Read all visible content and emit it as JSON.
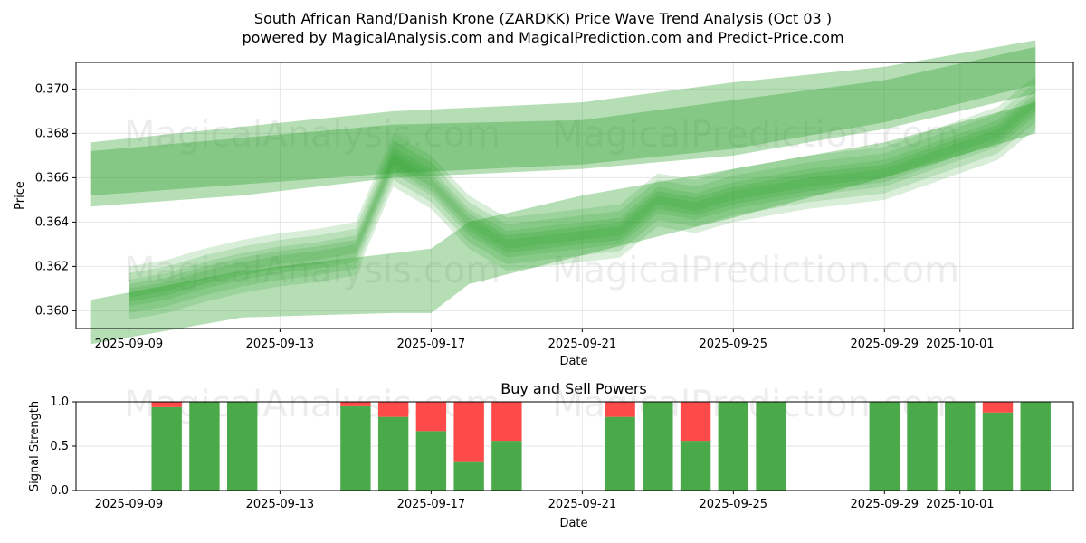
{
  "title": {
    "line1": "South African Rand/Danish Krone (ZARDKK) Price Wave Trend Analysis (Oct 03 )",
    "line2": "powered by MagicalAnalysis.com and MagicalPrediction.com and Predict-Price.com"
  },
  "watermarks": [
    "MagicalAnalysis.com",
    "MagicalPrediction.com"
  ],
  "chart_data": [
    {
      "type": "area",
      "title": "",
      "xlabel": "Date",
      "ylabel": "Price",
      "ylim": [
        0.3592,
        0.3712
      ],
      "xlim": [
        "2025-09-07.6",
        "2025-10-04.0"
      ],
      "grid": true,
      "x_tick_labels": [
        "2025-09-09",
        "2025-09-13",
        "2025-09-17",
        "2025-09-21",
        "2025-09-25",
        "2025-09-29",
        "2025-10-01"
      ],
      "y_tick_labels": [
        "0.360",
        "0.362",
        "0.364",
        "0.366",
        "0.368",
        "0.370"
      ],
      "series": [
        {
          "name": "upper-trend-band",
          "x": [
            "2025-09-08",
            "2025-09-12",
            "2025-09-16",
            "2025-09-21",
            "2025-09-25",
            "2025-09-29",
            "2025-10-03"
          ],
          "low": [
            0.3652,
            0.3657,
            0.3662,
            0.3666,
            0.3673,
            0.3685,
            0.3702
          ],
          "high": [
            0.3672,
            0.3678,
            0.3684,
            0.3686,
            0.3695,
            0.3704,
            0.3719
          ]
        },
        {
          "name": "upper-trend-band-2",
          "x": [
            "2025-09-08",
            "2025-09-12",
            "2025-09-16",
            "2025-09-21",
            "2025-09-25",
            "2025-09-29",
            "2025-10-03"
          ],
          "low": [
            0.3647,
            0.3652,
            0.366,
            0.3664,
            0.367,
            0.3682,
            0.3698
          ],
          "high": [
            0.3676,
            0.3683,
            0.369,
            0.3694,
            0.3703,
            0.371,
            0.3722
          ]
        },
        {
          "name": "lower-trend-band",
          "x": [
            "2025-09-08",
            "2025-09-12",
            "2025-09-16",
            "2025-09-17",
            "2025-09-18",
            "2025-09-21",
            "2025-09-25",
            "2025-09-29",
            "2025-10-03"
          ],
          "low": [
            0.3585,
            0.3597,
            0.3599,
            0.3599,
            0.3612,
            0.3625,
            0.3642,
            0.366,
            0.368
          ],
          "high": [
            0.3605,
            0.3618,
            0.3626,
            0.3628,
            0.364,
            0.3652,
            0.3664,
            0.3676,
            0.3694
          ]
        },
        {
          "name": "price-wave",
          "x": [
            "2025-09-09",
            "2025-09-10",
            "2025-09-11",
            "2025-09-12",
            "2025-09-13",
            "2025-09-14",
            "2025-09-15",
            "2025-09-16",
            "2025-09-17",
            "2025-09-18",
            "2025-09-19",
            "2025-09-20",
            "2025-09-21",
            "2025-09-22",
            "2025-09-23",
            "2025-09-24",
            "2025-09-25",
            "2025-09-26",
            "2025-09-27",
            "2025-09-28",
            "2025-09-29",
            "2025-09-30",
            "2025-10-01",
            "2025-10-02",
            "2025-10-03"
          ],
          "y": [
            0.3608,
            0.3611,
            0.3616,
            0.362,
            0.3623,
            0.3625,
            0.3628,
            0.3668,
            0.3658,
            0.364,
            0.363,
            0.3632,
            0.3634,
            0.3636,
            0.365,
            0.3647,
            0.3652,
            0.3655,
            0.3658,
            0.366,
            0.3662,
            0.3668,
            0.3674,
            0.368,
            0.3694
          ]
        }
      ]
    },
    {
      "type": "bar",
      "title": "Buy and Sell Powers",
      "xlabel": "Date",
      "ylabel": "Signal Strength",
      "ylim": [
        0,
        1.0
      ],
      "grid": true,
      "x_tick_labels": [
        "2025-09-09",
        "2025-09-13",
        "2025-09-17",
        "2025-09-21",
        "2025-09-25",
        "2025-09-29",
        "2025-10-01"
      ],
      "y_tick_labels": [
        "0.0",
        "0.5",
        "1.0"
      ],
      "series_names": [
        "Buy",
        "Sell"
      ],
      "bars": [
        {
          "date": "2025-09-10",
          "buy": 0.94,
          "sell": 0.06
        },
        {
          "date": "2025-09-11",
          "buy": 1.0,
          "sell": 0.0
        },
        {
          "date": "2025-09-12",
          "buy": 1.0,
          "sell": 0.0
        },
        {
          "date": "2025-09-15",
          "buy": 0.95,
          "sell": 0.05
        },
        {
          "date": "2025-09-16",
          "buy": 0.83,
          "sell": 0.17
        },
        {
          "date": "2025-09-17",
          "buy": 0.67,
          "sell": 0.33
        },
        {
          "date": "2025-09-18",
          "buy": 0.33,
          "sell": 0.67
        },
        {
          "date": "2025-09-19",
          "buy": 0.56,
          "sell": 0.44
        },
        {
          "date": "2025-09-22",
          "buy": 0.83,
          "sell": 0.17
        },
        {
          "date": "2025-09-23",
          "buy": 1.0,
          "sell": 0.0
        },
        {
          "date": "2025-09-24",
          "buy": 0.56,
          "sell": 0.44
        },
        {
          "date": "2025-09-25",
          "buy": 1.0,
          "sell": 0.0
        },
        {
          "date": "2025-09-26",
          "buy": 1.0,
          "sell": 0.0
        },
        {
          "date": "2025-09-29",
          "buy": 1.0,
          "sell": 0.0
        },
        {
          "date": "2025-09-30",
          "buy": 1.0,
          "sell": 0.0
        },
        {
          "date": "2025-10-01",
          "buy": 1.0,
          "sell": 0.0
        },
        {
          "date": "2025-10-02",
          "buy": 0.88,
          "sell": 0.12
        },
        {
          "date": "2025-10-03",
          "buy": 1.0,
          "sell": 0.0
        }
      ]
    }
  ],
  "colors": {
    "band": "#2ca02c",
    "buy": "#4aaa4a",
    "sell": "#ff4a4a"
  }
}
